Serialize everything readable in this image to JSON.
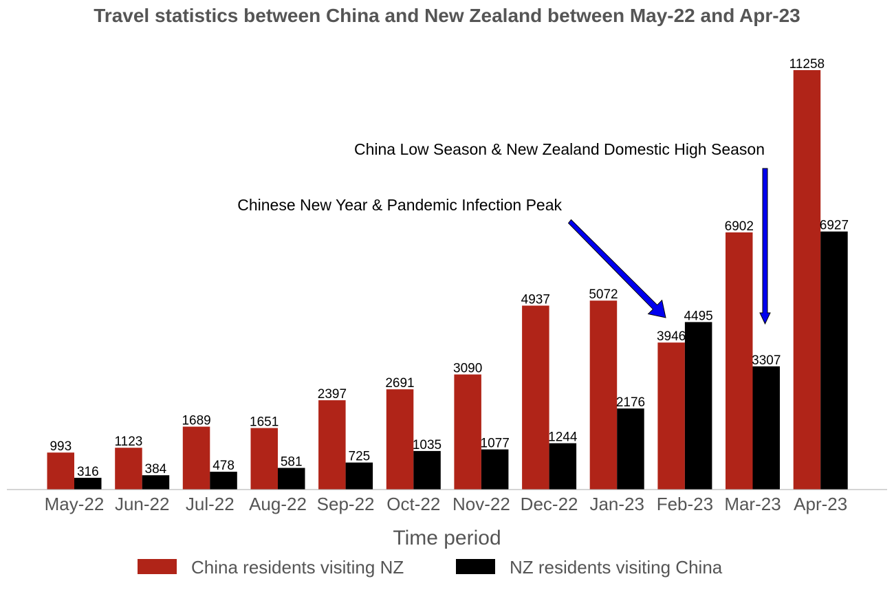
{
  "chart_data": {
    "type": "bar",
    "title": "Travel statistics between China and New Zealand between May-22 and Apr-23",
    "xlabel": "Time period",
    "ylabel": "",
    "categories": [
      "May-22",
      "Jun-22",
      "Jul-22",
      "Aug-22",
      "Sep-22",
      "Oct-22",
      "Nov-22",
      "Dec-22",
      "Jan-23",
      "Feb-23",
      "Mar-23",
      "Apr-23"
    ],
    "series": [
      {
        "name": "China residents visiting NZ",
        "color": "#b02418",
        "values": [
          993,
          1123,
          1689,
          1651,
          2397,
          2691,
          3090,
          4937,
          5072,
          3946,
          6902,
          11258
        ]
      },
      {
        "name": "NZ residents visiting China",
        "color": "#000000",
        "values": [
          316,
          384,
          478,
          581,
          725,
          1035,
          1077,
          1244,
          2176,
          4495,
          3307,
          6927
        ]
      }
    ],
    "ylim": [
      0,
      12000
    ],
    "grid": false,
    "legend_position": "bottom-center",
    "annotations": [
      {
        "text": "Chinese New Year & Pandemic Infection Peak",
        "points_to": {
          "category": "Feb-23",
          "value": 4600
        },
        "arrow_color": "#0000ee"
      },
      {
        "text": "China Low Season & New Zealand Domestic High Season",
        "points_to": {
          "category": "Mar-23",
          "value": 4400
        },
        "arrow_color": "#0000ee"
      }
    ]
  }
}
